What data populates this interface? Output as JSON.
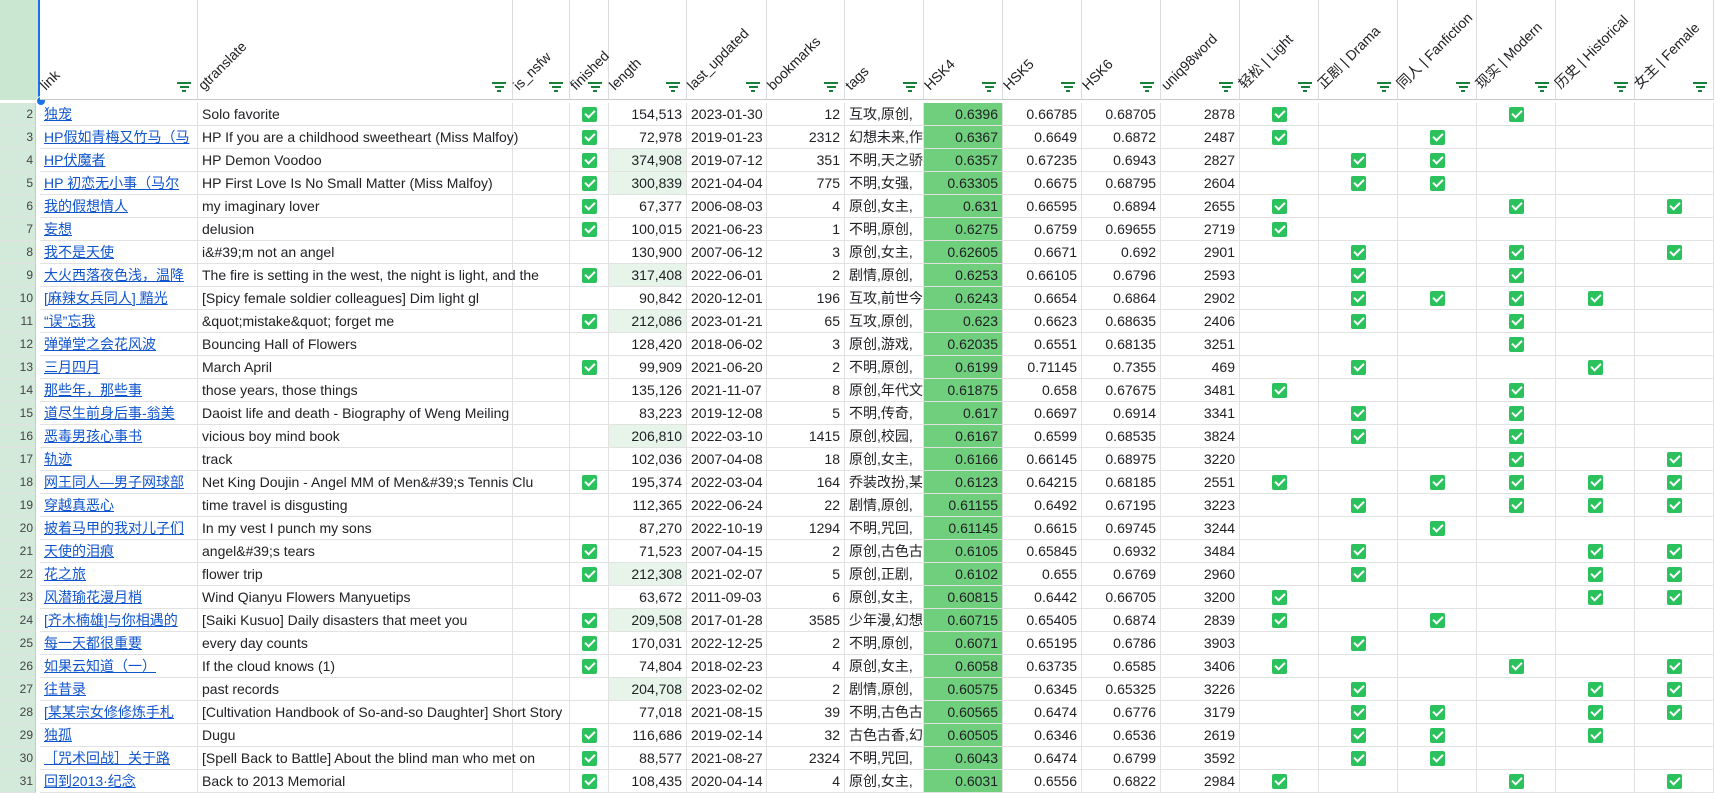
{
  "columns": [
    {
      "key": "link",
      "header": "link"
    },
    {
      "key": "gtranslate",
      "header": "gtranslate"
    },
    {
      "key": "is_nsfw",
      "header": "is_nsfw"
    },
    {
      "key": "finished",
      "header": "finished"
    },
    {
      "key": "length",
      "header": "length"
    },
    {
      "key": "last_updated",
      "header": "last_updated"
    },
    {
      "key": "bookmarks",
      "header": "bookmarks"
    },
    {
      "key": "tags",
      "header": "tags"
    },
    {
      "key": "hsk4",
      "header": "HSK4"
    },
    {
      "key": "hsk5",
      "header": "HSK5"
    },
    {
      "key": "hsk6",
      "header": "HSK6"
    },
    {
      "key": "uniq",
      "header": "uniq98word"
    },
    {
      "key": "light",
      "header": "轻松 | Light"
    },
    {
      "key": "drama",
      "header": "正剧 | Drama"
    },
    {
      "key": "fanfic",
      "header": "同人 | Fanfiction"
    },
    {
      "key": "modern",
      "header": "现实 | Modern"
    },
    {
      "key": "historical",
      "header": "历史 | Historical"
    },
    {
      "key": "female",
      "header": "女主 | Female"
    }
  ],
  "rows": [
    {
      "num": "2",
      "link": "独宠",
      "gtranslate": "Solo favorite",
      "finished": true,
      "length": "154,513",
      "last_updated": "2023-01-30",
      "bookmarks": "12",
      "tags": "互攻,原创,",
      "hsk4": "0.6396",
      "hsk5": "0.66785",
      "hsk6": "0.68705",
      "uniq": "2878",
      "flags": {
        "light": true,
        "drama": false,
        "fanfic": false,
        "modern": true,
        "historical": false,
        "female": false
      }
    },
    {
      "num": "3",
      "link": "HP假如青梅又竹马（马",
      "gtranslate": "HP If you are a childhood sweetheart (Miss Malfoy)",
      "finished": true,
      "length": "72,978",
      "last_updated": "2019-01-23",
      "bookmarks": "2312",
      "tags": "幻想未来,作",
      "hsk4": "0.6367",
      "hsk5": "0.6649",
      "hsk6": "0.6872",
      "uniq": "2487",
      "flags": {
        "light": true,
        "drama": false,
        "fanfic": true,
        "modern": false,
        "historical": false,
        "female": false
      }
    },
    {
      "num": "4",
      "link": "HP伏魔者",
      "gtranslate": "HP Demon Voodoo",
      "finished": true,
      "length": "374,908",
      "lenhl": true,
      "last_updated": "2019-07-12",
      "bookmarks": "351",
      "tags": "不明,天之骄",
      "hsk4": "0.6357",
      "hsk5": "0.67235",
      "hsk6": "0.6943",
      "uniq": "2827",
      "flags": {
        "light": false,
        "drama": true,
        "fanfic": true,
        "modern": false,
        "historical": false,
        "female": false
      }
    },
    {
      "num": "5",
      "link": "HP 初恋无小事（马尔",
      "gtranslate": "HP First Love Is No Small Matter (Miss Malfoy)",
      "finished": true,
      "length": "300,839",
      "lenhl": true,
      "last_updated": "2021-04-04",
      "bookmarks": "775",
      "tags": "不明,女强,",
      "hsk4": "0.63305",
      "hsk5": "0.6675",
      "hsk6": "0.68795",
      "uniq": "2604",
      "flags": {
        "light": false,
        "drama": true,
        "fanfic": true,
        "modern": false,
        "historical": false,
        "female": false
      }
    },
    {
      "num": "6",
      "link": "我的假想情人",
      "gtranslate": "my imaginary lover",
      "finished": true,
      "length": "67,377",
      "last_updated": "2006-08-03",
      "bookmarks": "4",
      "tags": "原创,女主,",
      "hsk4": "0.631",
      "hsk5": "0.66595",
      "hsk6": "0.6894",
      "uniq": "2655",
      "flags": {
        "light": true,
        "drama": false,
        "fanfic": false,
        "modern": true,
        "historical": false,
        "female": true
      }
    },
    {
      "num": "7",
      "link": "妄想",
      "gtranslate": "delusion",
      "finished": true,
      "length": "100,015",
      "last_updated": "2021-06-23",
      "bookmarks": "1",
      "tags": "不明,原创,",
      "hsk4": "0.6275",
      "hsk5": "0.6759",
      "hsk6": "0.69655",
      "uniq": "2719",
      "flags": {
        "light": true,
        "drama": false,
        "fanfic": false,
        "modern": false,
        "historical": false,
        "female": false
      }
    },
    {
      "num": "8",
      "link": "我不是天使",
      "gtranslate": "i&#39;m not an angel",
      "finished": false,
      "length": "130,900",
      "last_updated": "2007-06-12",
      "bookmarks": "3",
      "tags": "原创,女主,",
      "hsk4": "0.62605",
      "hsk5": "0.6671",
      "hsk6": "0.692",
      "uniq": "2901",
      "flags": {
        "light": false,
        "drama": true,
        "fanfic": false,
        "modern": true,
        "historical": false,
        "female": true
      }
    },
    {
      "num": "9",
      "link": "大火西落夜色浅，温降",
      "gtranslate": "The fire is setting in the west, the night is light, and the",
      "finished": true,
      "length": "317,408",
      "lenhl": true,
      "last_updated": "2022-06-01",
      "bookmarks": "2",
      "tags": "剧情,原创,",
      "hsk4": "0.6253",
      "hsk5": "0.66105",
      "hsk6": "0.6796",
      "uniq": "2593",
      "flags": {
        "light": false,
        "drama": true,
        "fanfic": false,
        "modern": true,
        "historical": false,
        "female": false
      }
    },
    {
      "num": "10",
      "link": "[麻辣女兵同人] 黯光",
      "gtranslate": "[Spicy female soldier colleagues] Dim light gl",
      "finished": false,
      "length": "90,842",
      "last_updated": "2020-12-01",
      "bookmarks": "196",
      "tags": "互攻,前世今",
      "hsk4": "0.6243",
      "hsk5": "0.6654",
      "hsk6": "0.6864",
      "uniq": "2902",
      "flags": {
        "light": false,
        "drama": true,
        "fanfic": true,
        "modern": true,
        "historical": true,
        "female": false
      }
    },
    {
      "num": "11",
      "link": "“误”忘我",
      "gtranslate": "&quot;mistake&quot; forget me",
      "finished": true,
      "length": "212,086",
      "lenhl": true,
      "last_updated": "2023-01-21",
      "bookmarks": "65",
      "tags": "互攻,原创,",
      "hsk4": "0.623",
      "hsk5": "0.6623",
      "hsk6": "0.68635",
      "uniq": "2406",
      "flags": {
        "light": false,
        "drama": true,
        "fanfic": false,
        "modern": true,
        "historical": false,
        "female": false
      }
    },
    {
      "num": "12",
      "link": "弹弹堂之会花风波",
      "gtranslate": "Bouncing Hall of Flowers",
      "finished": false,
      "length": "128,420",
      "last_updated": "2018-06-02",
      "bookmarks": "3",
      "tags": "原创,游戏,",
      "hsk4": "0.62035",
      "hsk5": "0.6551",
      "hsk6": "0.68135",
      "uniq": "3251",
      "flags": {
        "light": false,
        "drama": false,
        "fanfic": false,
        "modern": true,
        "historical": false,
        "female": false
      }
    },
    {
      "num": "13",
      "link": "三月四月",
      "gtranslate": "March April",
      "finished": true,
      "length": "99,909",
      "last_updated": "2021-06-20",
      "bookmarks": "2",
      "tags": "不明,原创,",
      "hsk4": "0.6199",
      "hsk5": "0.71145",
      "hsk6": "0.7355",
      "uniq": "469",
      "flags": {
        "light": false,
        "drama": true,
        "fanfic": false,
        "modern": false,
        "historical": true,
        "female": false
      }
    },
    {
      "num": "14",
      "link": "那些年，那些事",
      "gtranslate": "those years, those things",
      "finished": false,
      "length": "135,126",
      "last_updated": "2021-11-07",
      "bookmarks": "8",
      "tags": "原创,年代文",
      "hsk4": "0.61875",
      "hsk5": "0.658",
      "hsk6": "0.67675",
      "uniq": "3481",
      "flags": {
        "light": true,
        "drama": false,
        "fanfic": false,
        "modern": true,
        "historical": false,
        "female": false
      }
    },
    {
      "num": "15",
      "link": "道尽生前身后事-翁美",
      "gtranslate": "Daoist life and death - Biography of Weng Meiling",
      "finished": false,
      "length": "83,223",
      "last_updated": "2019-12-08",
      "bookmarks": "5",
      "tags": "不明,传奇,",
      "hsk4": "0.617",
      "hsk5": "0.6697",
      "hsk6": "0.6914",
      "uniq": "3341",
      "flags": {
        "light": false,
        "drama": true,
        "fanfic": false,
        "modern": true,
        "historical": false,
        "female": false
      }
    },
    {
      "num": "16",
      "link": "恶毒男孩心事书",
      "gtranslate": "vicious boy mind book",
      "finished": false,
      "length": "206,810",
      "lenhl": true,
      "last_updated": "2022-03-10",
      "bookmarks": "1415",
      "tags": "原创,校园,",
      "hsk4": "0.6167",
      "hsk5": "0.6599",
      "hsk6": "0.68535",
      "uniq": "3824",
      "flags": {
        "light": false,
        "drama": true,
        "fanfic": false,
        "modern": true,
        "historical": false,
        "female": false
      }
    },
    {
      "num": "17",
      "link": "轨迹",
      "gtranslate": "track",
      "finished": false,
      "length": "102,036",
      "last_updated": "2007-04-08",
      "bookmarks": "18",
      "tags": "原创,女主,",
      "hsk4": "0.6166",
      "hsk5": "0.66145",
      "hsk6": "0.68975",
      "uniq": "3220",
      "flags": {
        "light": false,
        "drama": false,
        "fanfic": false,
        "modern": true,
        "historical": false,
        "female": true
      }
    },
    {
      "num": "18",
      "link": "网王同人—男子网球部",
      "gtranslate": "Net King Doujin - Angel MM of Men&#39;s Tennis Clu",
      "finished": true,
      "length": "195,374",
      "last_updated": "2022-03-04",
      "bookmarks": "164",
      "tags": "乔装改扮,某",
      "hsk4": "0.6123",
      "hsk5": "0.64215",
      "hsk6": "0.68185",
      "uniq": "2551",
      "flags": {
        "light": true,
        "drama": false,
        "fanfic": true,
        "modern": true,
        "historical": true,
        "female": true
      }
    },
    {
      "num": "19",
      "link": "穿越真恶心",
      "gtranslate": "time travel is disgusting",
      "finished": false,
      "length": "112,365",
      "last_updated": "2022-06-24",
      "bookmarks": "22",
      "tags": "剧情,原创,",
      "hsk4": "0.61155",
      "hsk5": "0.6492",
      "hsk6": "0.67195",
      "uniq": "3223",
      "flags": {
        "light": false,
        "drama": true,
        "fanfic": false,
        "modern": true,
        "historical": true,
        "female": true
      }
    },
    {
      "num": "20",
      "link": "披着马甲的我对儿子们",
      "gtranslate": "In my vest I punch my sons",
      "finished": false,
      "length": "87,270",
      "last_updated": "2022-10-19",
      "bookmarks": "1294",
      "tags": "不明,咒回,",
      "hsk4": "0.61145",
      "hsk5": "0.6615",
      "hsk6": "0.69745",
      "uniq": "3244",
      "flags": {
        "light": false,
        "drama": false,
        "fanfic": true,
        "modern": false,
        "historical": false,
        "female": false
      }
    },
    {
      "num": "21",
      "link": "天使的泪痕",
      "gtranslate": "angel&#39;s tears",
      "finished": true,
      "length": "71,523",
      "last_updated": "2007-04-15",
      "bookmarks": "2",
      "tags": "原创,古色古",
      "hsk4": "0.6105",
      "hsk5": "0.65845",
      "hsk6": "0.6932",
      "uniq": "3484",
      "flags": {
        "light": false,
        "drama": true,
        "fanfic": false,
        "modern": false,
        "historical": true,
        "female": true
      }
    },
    {
      "num": "22",
      "link": "花之旅",
      "gtranslate": "flower trip",
      "finished": true,
      "length": "212,308",
      "lenhl": true,
      "last_updated": "2021-02-07",
      "bookmarks": "5",
      "tags": "原创,正剧,",
      "hsk4": "0.6102",
      "hsk5": "0.655",
      "hsk6": "0.6769",
      "uniq": "2960",
      "flags": {
        "light": false,
        "drama": true,
        "fanfic": false,
        "modern": false,
        "historical": true,
        "female": true
      }
    },
    {
      "num": "23",
      "link": "风潜瑜花漫月梢",
      "gtranslate": "Wind Qianyu Flowers Manyuetips",
      "finished": false,
      "length": "63,672",
      "last_updated": "2011-09-03",
      "bookmarks": "6",
      "tags": "原创,女主,",
      "hsk4": "0.60815",
      "hsk5": "0.6442",
      "hsk6": "0.66705",
      "uniq": "3200",
      "flags": {
        "light": true,
        "drama": false,
        "fanfic": false,
        "modern": false,
        "historical": true,
        "female": true
      }
    },
    {
      "num": "24",
      "link": "[齐木楠雄]与你相遇的",
      "gtranslate": "[Saiki Kusuo] Daily disasters that meet you",
      "finished": true,
      "length": "209,508",
      "lenhl": true,
      "last_updated": "2017-01-28",
      "bookmarks": "3585",
      "tags": "少年漫,幻想",
      "hsk4": "0.60715",
      "hsk5": "0.65405",
      "hsk6": "0.6874",
      "uniq": "2839",
      "flags": {
        "light": true,
        "drama": false,
        "fanfic": true,
        "modern": false,
        "historical": false,
        "female": false
      }
    },
    {
      "num": "25",
      "link": "每一天都很重要",
      "gtranslate": "every day counts",
      "finished": true,
      "length": "170,031",
      "last_updated": "2022-12-25",
      "bookmarks": "2",
      "tags": "不明,原创,",
      "hsk4": "0.6071",
      "hsk5": "0.65195",
      "hsk6": "0.6786",
      "uniq": "3903",
      "flags": {
        "light": false,
        "drama": true,
        "fanfic": false,
        "modern": false,
        "historical": false,
        "female": false
      }
    },
    {
      "num": "26",
      "link": "如果云知道（一）",
      "gtranslate": "If the cloud knows (1)",
      "finished": true,
      "length": "74,804",
      "last_updated": "2018-02-23",
      "bookmarks": "4",
      "tags": "原创,女主,",
      "hsk4": "0.6058",
      "hsk5": "0.63735",
      "hsk6": "0.6585",
      "uniq": "3406",
      "flags": {
        "light": true,
        "drama": false,
        "fanfic": false,
        "modern": true,
        "historical": false,
        "female": true
      }
    },
    {
      "num": "27",
      "link": "往昔录",
      "gtranslate": "past records",
      "finished": false,
      "length": "204,708",
      "lenhl": true,
      "last_updated": "2023-02-02",
      "bookmarks": "2",
      "tags": "剧情,原创,",
      "hsk4": "0.60575",
      "hsk5": "0.6345",
      "hsk6": "0.65325",
      "uniq": "3226",
      "flags": {
        "light": false,
        "drama": true,
        "fanfic": false,
        "modern": false,
        "historical": true,
        "female": true
      }
    },
    {
      "num": "28",
      "link": "[某某宗女修修炼手札",
      "gtranslate": "[Cultivation Handbook of So-and-so Daughter] Short Story",
      "finished": false,
      "length": "77,018",
      "last_updated": "2021-08-15",
      "bookmarks": "39",
      "tags": "不明,古色古",
      "hsk4": "0.60565",
      "hsk5": "0.6474",
      "hsk6": "0.6776",
      "uniq": "3179",
      "flags": {
        "light": false,
        "drama": true,
        "fanfic": true,
        "modern": false,
        "historical": true,
        "female": true
      }
    },
    {
      "num": "29",
      "link": "独孤",
      "gtranslate": "Dugu",
      "finished": true,
      "length": "116,686",
      "last_updated": "2019-02-14",
      "bookmarks": "32",
      "tags": "古色古香,幻",
      "hsk4": "0.60505",
      "hsk5": "0.6346",
      "hsk6": "0.6536",
      "uniq": "2619",
      "flags": {
        "light": false,
        "drama": true,
        "fanfic": true,
        "modern": false,
        "historical": true,
        "female": false
      }
    },
    {
      "num": "30",
      "link": "［咒术回战］关于路",
      "gtranslate": "[Spell Back to Battle] About the blind man who met on",
      "finished": true,
      "length": "88,577",
      "last_updated": "2021-08-27",
      "bookmarks": "2324",
      "tags": "不明,咒回,",
      "hsk4": "0.6043",
      "hsk5": "0.6474",
      "hsk6": "0.6799",
      "uniq": "3592",
      "flags": {
        "light": false,
        "drama": true,
        "fanfic": true,
        "modern": false,
        "historical": false,
        "female": false
      }
    },
    {
      "num": "31",
      "link": "回到2013·纪念",
      "gtranslate": "Back to 2013 Memorial",
      "finished": true,
      "length": "108,435",
      "last_updated": "2020-04-14",
      "bookmarks": "4",
      "tags": "原创,女主,",
      "hsk4": "0.6031",
      "hsk5": "0.6556",
      "hsk6": "0.6822",
      "uniq": "2984",
      "flags": {
        "light": true,
        "drama": false,
        "fanfic": false,
        "modern": true,
        "historical": false,
        "female": true
      }
    }
  ]
}
